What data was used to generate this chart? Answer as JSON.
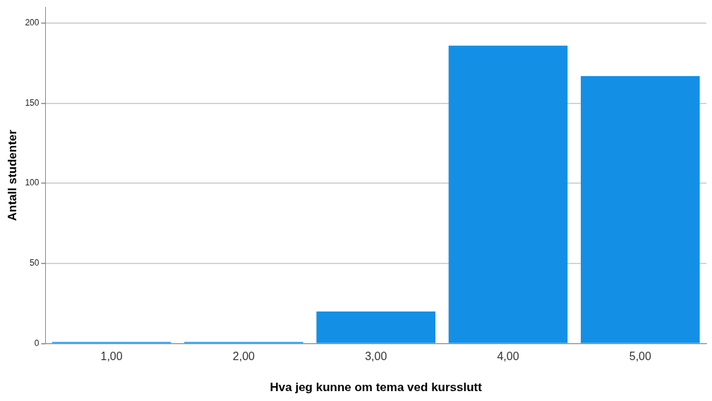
{
  "chart_data": {
    "type": "bar",
    "xlabel": "Hva jeg kunne om tema ved kursslutt",
    "ylabel": "Antall studenter",
    "categories": [
      "1,00",
      "2,00",
      "3,00",
      "4,00",
      "5,00"
    ],
    "values": [
      1,
      1,
      20,
      186,
      167
    ],
    "color": "#1390e6",
    "ylim": [
      0,
      210
    ],
    "yticks": [
      0,
      50,
      100,
      150,
      200
    ],
    "grid": "y",
    "legend": false
  }
}
